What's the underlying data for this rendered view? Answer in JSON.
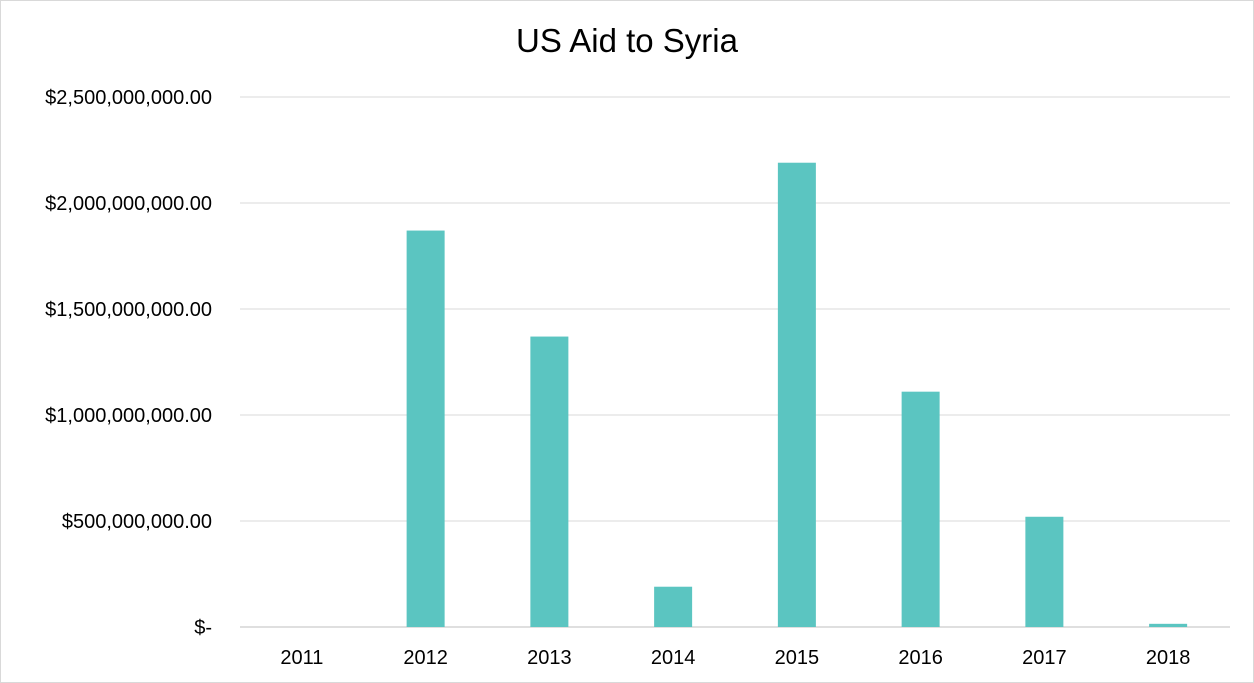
{
  "chart_data": {
    "type": "bar",
    "title": "US Aid to Syria",
    "categories": [
      "2011",
      "2012",
      "2013",
      "2014",
      "2015",
      "2016",
      "2017",
      "2018"
    ],
    "values": [
      0,
      1870000000,
      1370000000,
      190000000,
      2190000000,
      1110000000,
      520000000,
      15000000
    ],
    "ylim": [
      0,
      2500000000
    ],
    "yticks": [
      0,
      500000000,
      1000000000,
      1500000000,
      2000000000,
      2500000000
    ],
    "ytick_labels": [
      "$-",
      "$500,000,000.00",
      "$1,000,000,000.00",
      "$1,500,000,000.00",
      "$2,000,000,000.00",
      "$2,500,000,000.00"
    ],
    "xlabel": "",
    "ylabel": "",
    "grid": true,
    "legend": "none",
    "colors": {
      "bar": "#5BC5C1",
      "grid": "#d9d9d9",
      "axis": "#bfbfbf"
    }
  }
}
